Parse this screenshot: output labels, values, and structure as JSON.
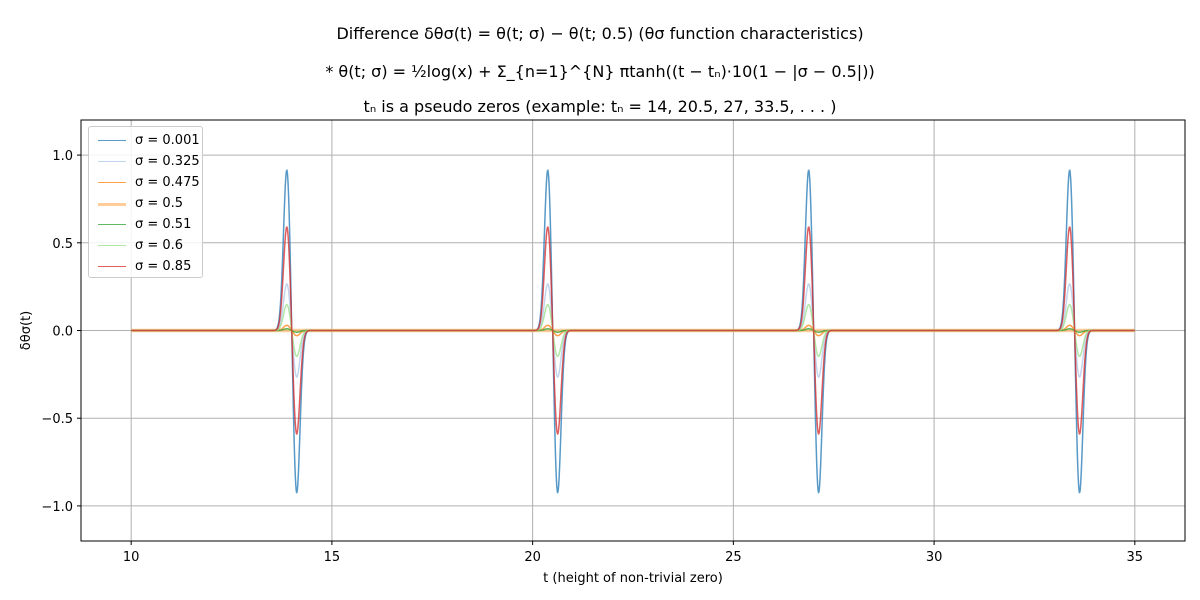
{
  "titles": {
    "line1": "Difference δθσ(t) = θ(t; σ) − θ(t; 0.5) (θσ function characteristics)",
    "line2": "* θ(t; σ) = ½log(x) + Σ_{n=1}^{N} πtanh((t − tₙ)·10(1 − |σ − 0.5|))",
    "line3": "tₙ is a pseudo zeros (example: tₙ = 14, 20.5, 27, 33.5, . . . )"
  },
  "chart_data": {
    "type": "line",
    "xlabel": "t (height of non-trivial zero)",
    "ylabel": "δθσ(t)",
    "xlim": [
      8.75,
      36.25
    ],
    "ylim": [
      -1.2,
      1.2
    ],
    "xticks": [
      10,
      15,
      20,
      25,
      30,
      35
    ],
    "xtick_labels": [
      "10",
      "15",
      "20",
      "25",
      "30",
      "35"
    ],
    "yticks": [
      -1.0,
      -0.5,
      0.0,
      0.5,
      1.0
    ],
    "ytick_labels": [
      "−1.0",
      "−0.5",
      "0.0",
      "0.5",
      "1.0"
    ],
    "grid": true,
    "legend_position": "top-left",
    "x_range": [
      10,
      35
    ],
    "pseudo_zeros": [
      14,
      20.5,
      27,
      33.5
    ],
    "series": [
      {
        "name": "σ = 0.001",
        "color": "#1f77b4",
        "peak": 0.93,
        "trough": -0.94
      },
      {
        "name": "σ = 0.325",
        "color": "#aec7e8",
        "peak": 0.27,
        "trough": -0.27
      },
      {
        "name": "σ = 0.475",
        "color": "#ff7f0e",
        "peak": 0.03,
        "trough": -0.03
      },
      {
        "name": "σ = 0.5",
        "color": "#ffbb78",
        "peak": 0.0,
        "trough": 0.0
      },
      {
        "name": "σ = 0.51",
        "color": "#2ca02c",
        "peak": 0.01,
        "trough": -0.01
      },
      {
        "name": "σ = 0.6",
        "color": "#98df8a",
        "peak": 0.15,
        "trough": -0.15
      },
      {
        "name": "σ = 0.85",
        "color": "#d62728",
        "peak": 0.6,
        "trough": -0.6
      }
    ]
  }
}
